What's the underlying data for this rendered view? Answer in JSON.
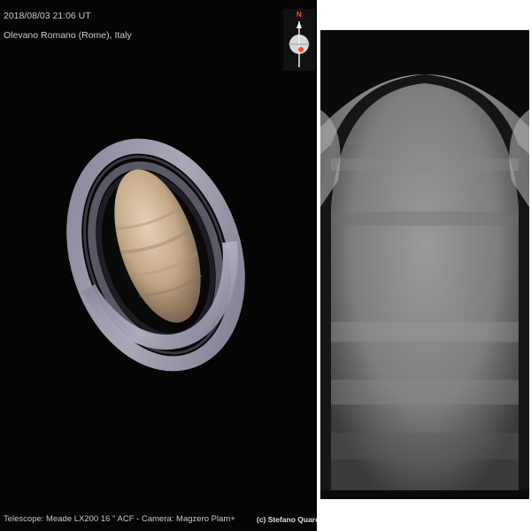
{
  "photo": {
    "date_time": "2018/08/03   21:06 UT",
    "location": "Olevano Romano (Rome), Italy",
    "equipment": "Telescope: Meade LX200 16 \" ACF  -  Camera: Magzero Plam+",
    "credit": "(c) Stefano Quaresima",
    "compass_letter": "N",
    "colors": {
      "background": "#050505",
      "planet": "#c9b08f",
      "rings": "#a6a3b8",
      "compass_accent": "#ff4a2a"
    }
  }
}
